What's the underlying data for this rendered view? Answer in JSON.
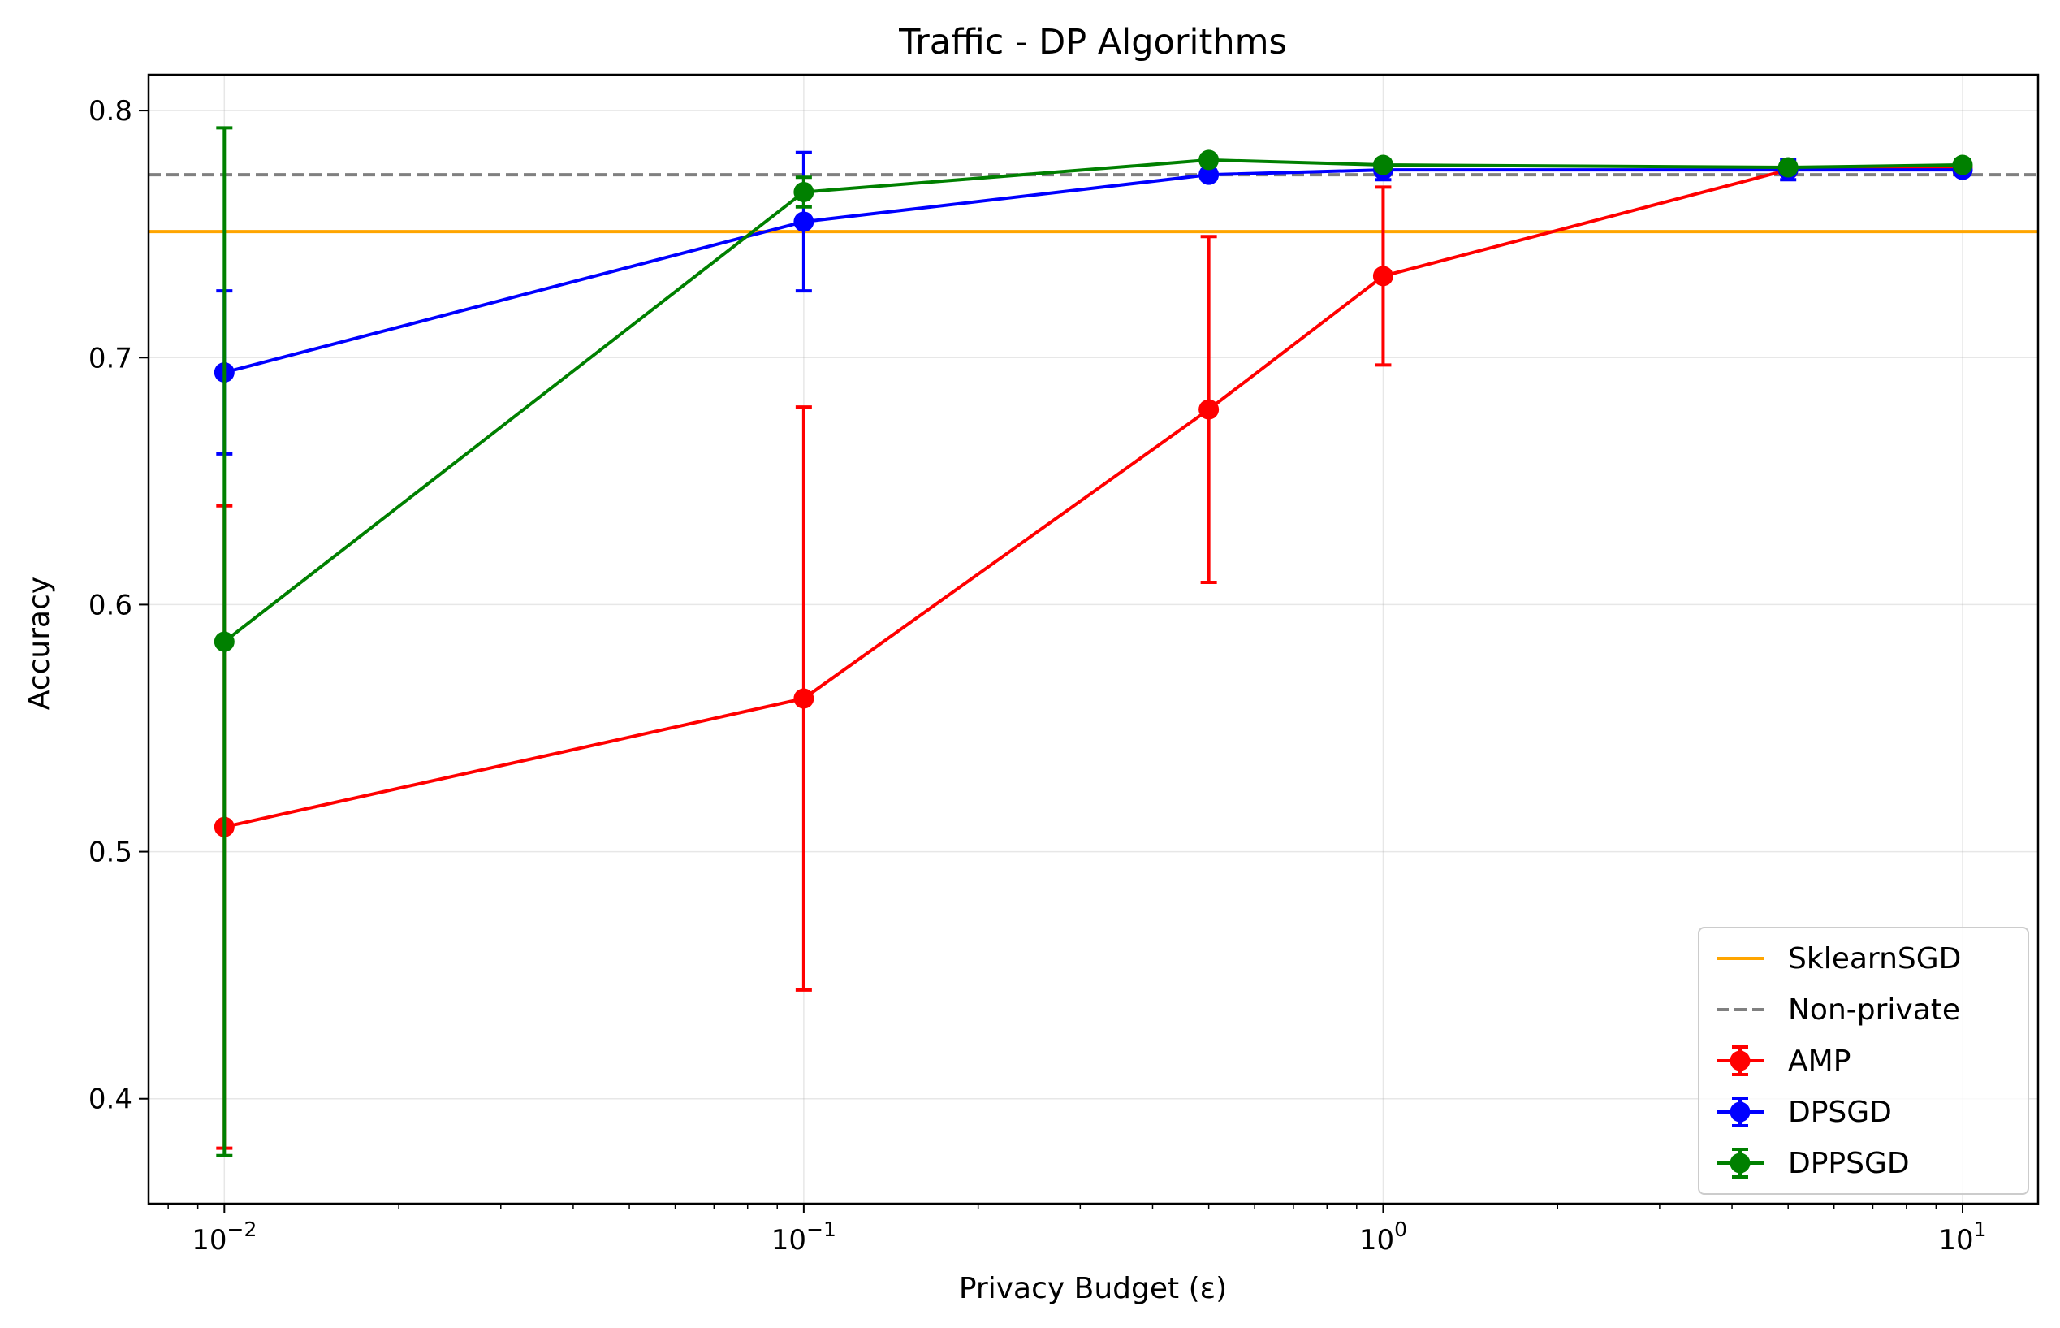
{
  "chart_data": {
    "type": "line",
    "title": "Traffic - DP Algorithms",
    "xlabel": "Privacy Budget (ε)",
    "ylabel": "Accuracy",
    "xscale": "log",
    "xlim": [
      0.0074,
      13.5
    ],
    "ylim": [
      0.3575,
      0.8145
    ],
    "x_ticks": [
      0.01,
      0.1,
      1,
      10
    ],
    "x_tick_labels": [
      {
        "base": "10",
        "exp": "−2"
      },
      {
        "base": "10",
        "exp": "−1"
      },
      {
        "base": "10",
        "exp": "0"
      },
      {
        "base": "10",
        "exp": "1"
      }
    ],
    "y_ticks": [
      0.4,
      0.5,
      0.6,
      0.7,
      0.8
    ],
    "y_tick_labels": [
      "0.4",
      "0.5",
      "0.6",
      "0.7",
      "0.8"
    ],
    "grid": true,
    "legend_position": "bottom-right",
    "reference_lines": [
      {
        "name": "SklearnSGD",
        "y": 0.751,
        "color": "#ffa500",
        "style": "solid"
      },
      {
        "name": "Non-private",
        "y": 0.774,
        "color": "#808080",
        "style": "dashed"
      }
    ],
    "series": [
      {
        "name": "AMP",
        "color": "#ff0000",
        "x": [
          0.01,
          0.1,
          0.5,
          1,
          5,
          10
        ],
        "y": [
          0.51,
          0.562,
          0.679,
          0.733,
          0.776,
          0.777
        ],
        "yerr": [
          0.13,
          0.118,
          0.07,
          0.036,
          0.002,
          0.002
        ]
      },
      {
        "name": "DPSGD",
        "color": "#0000ff",
        "x": [
          0.01,
          0.1,
          0.5,
          1,
          5,
          10
        ],
        "y": [
          0.694,
          0.755,
          0.774,
          0.776,
          0.776,
          0.776
        ],
        "yerr": [
          0.033,
          0.028,
          0.002,
          0.004,
          0.004,
          0.002
        ]
      },
      {
        "name": "DPPSGD",
        "color": "#008000",
        "x": [
          0.01,
          0.1,
          0.5,
          1,
          5,
          10
        ],
        "y": [
          0.585,
          0.767,
          0.78,
          0.778,
          0.777,
          0.778
        ],
        "yerr": [
          0.208,
          0.006,
          0.002,
          0.002,
          0.002,
          0.002
        ]
      }
    ]
  }
}
